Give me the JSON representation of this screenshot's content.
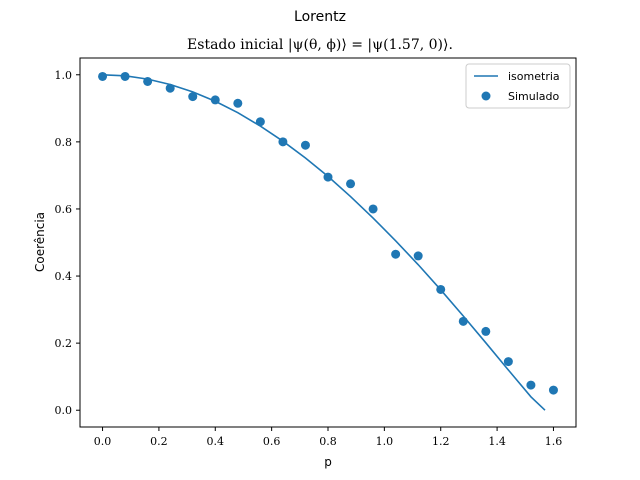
{
  "chart_data": {
    "type": "scatter",
    "suptitle": "Lorentz",
    "title": "Estado inicial |ψ(θ, ϕ)⟩ = |ψ(1.57, 0)⟩.",
    "xlabel": "p",
    "ylabel": "Coerência",
    "xlim": [
      -0.08,
      1.68
    ],
    "ylim": [
      -0.05,
      1.05
    ],
    "xticks": [
      0.0,
      0.2,
      0.4,
      0.6,
      0.8,
      1.0,
      1.2,
      1.4,
      1.6
    ],
    "xtick_labels": [
      "0.0",
      "0.2",
      "0.4",
      "0.6",
      "0.8",
      "1.0",
      "1.2",
      "1.4",
      "1.6"
    ],
    "yticks": [
      0.0,
      0.2,
      0.4,
      0.6,
      0.8,
      1.0
    ],
    "ytick_labels": [
      "0.0",
      "0.2",
      "0.4",
      "0.6",
      "0.8",
      "1.0"
    ],
    "grid": false,
    "legend_position": "top-right",
    "color": "#1f77b4",
    "series": [
      {
        "name": "isometria",
        "kind": "line",
        "x": [
          0.0,
          0.08,
          0.16,
          0.24,
          0.32,
          0.4,
          0.48,
          0.56,
          0.64,
          0.72,
          0.8,
          0.88,
          0.96,
          1.04,
          1.12,
          1.2,
          1.28,
          1.36,
          1.44,
          1.52,
          1.57
        ],
        "y": [
          1.0,
          0.997,
          0.987,
          0.971,
          0.949,
          0.921,
          0.887,
          0.847,
          0.802,
          0.752,
          0.697,
          0.637,
          0.573,
          0.505,
          0.434,
          0.359,
          0.281,
          0.201,
          0.12,
          0.04,
          0.0
        ]
      },
      {
        "name": "Simulado",
        "kind": "scatter",
        "x": [
          0.0,
          0.08,
          0.16,
          0.24,
          0.32,
          0.4,
          0.48,
          0.56,
          0.64,
          0.72,
          0.8,
          0.88,
          0.96,
          1.04,
          1.12,
          1.2,
          1.28,
          1.36,
          1.44,
          1.52,
          1.6
        ],
        "y": [
          0.995,
          0.995,
          0.98,
          0.96,
          0.935,
          0.925,
          0.915,
          0.86,
          0.8,
          0.79,
          0.695,
          0.675,
          0.6,
          0.465,
          0.46,
          0.36,
          0.265,
          0.235,
          0.145,
          0.075,
          0.06
        ]
      }
    ]
  }
}
